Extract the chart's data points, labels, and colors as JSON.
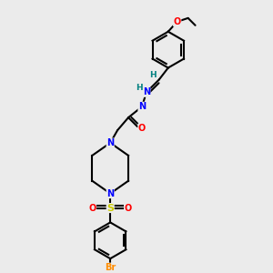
{
  "background_color": "#ebebeb",
  "bond_color": "#000000",
  "atom_colors": {
    "N": "#0000ff",
    "O": "#ff0000",
    "S": "#cccc00",
    "Br": "#ff8c00",
    "H": "#008080",
    "C": "#000000"
  }
}
